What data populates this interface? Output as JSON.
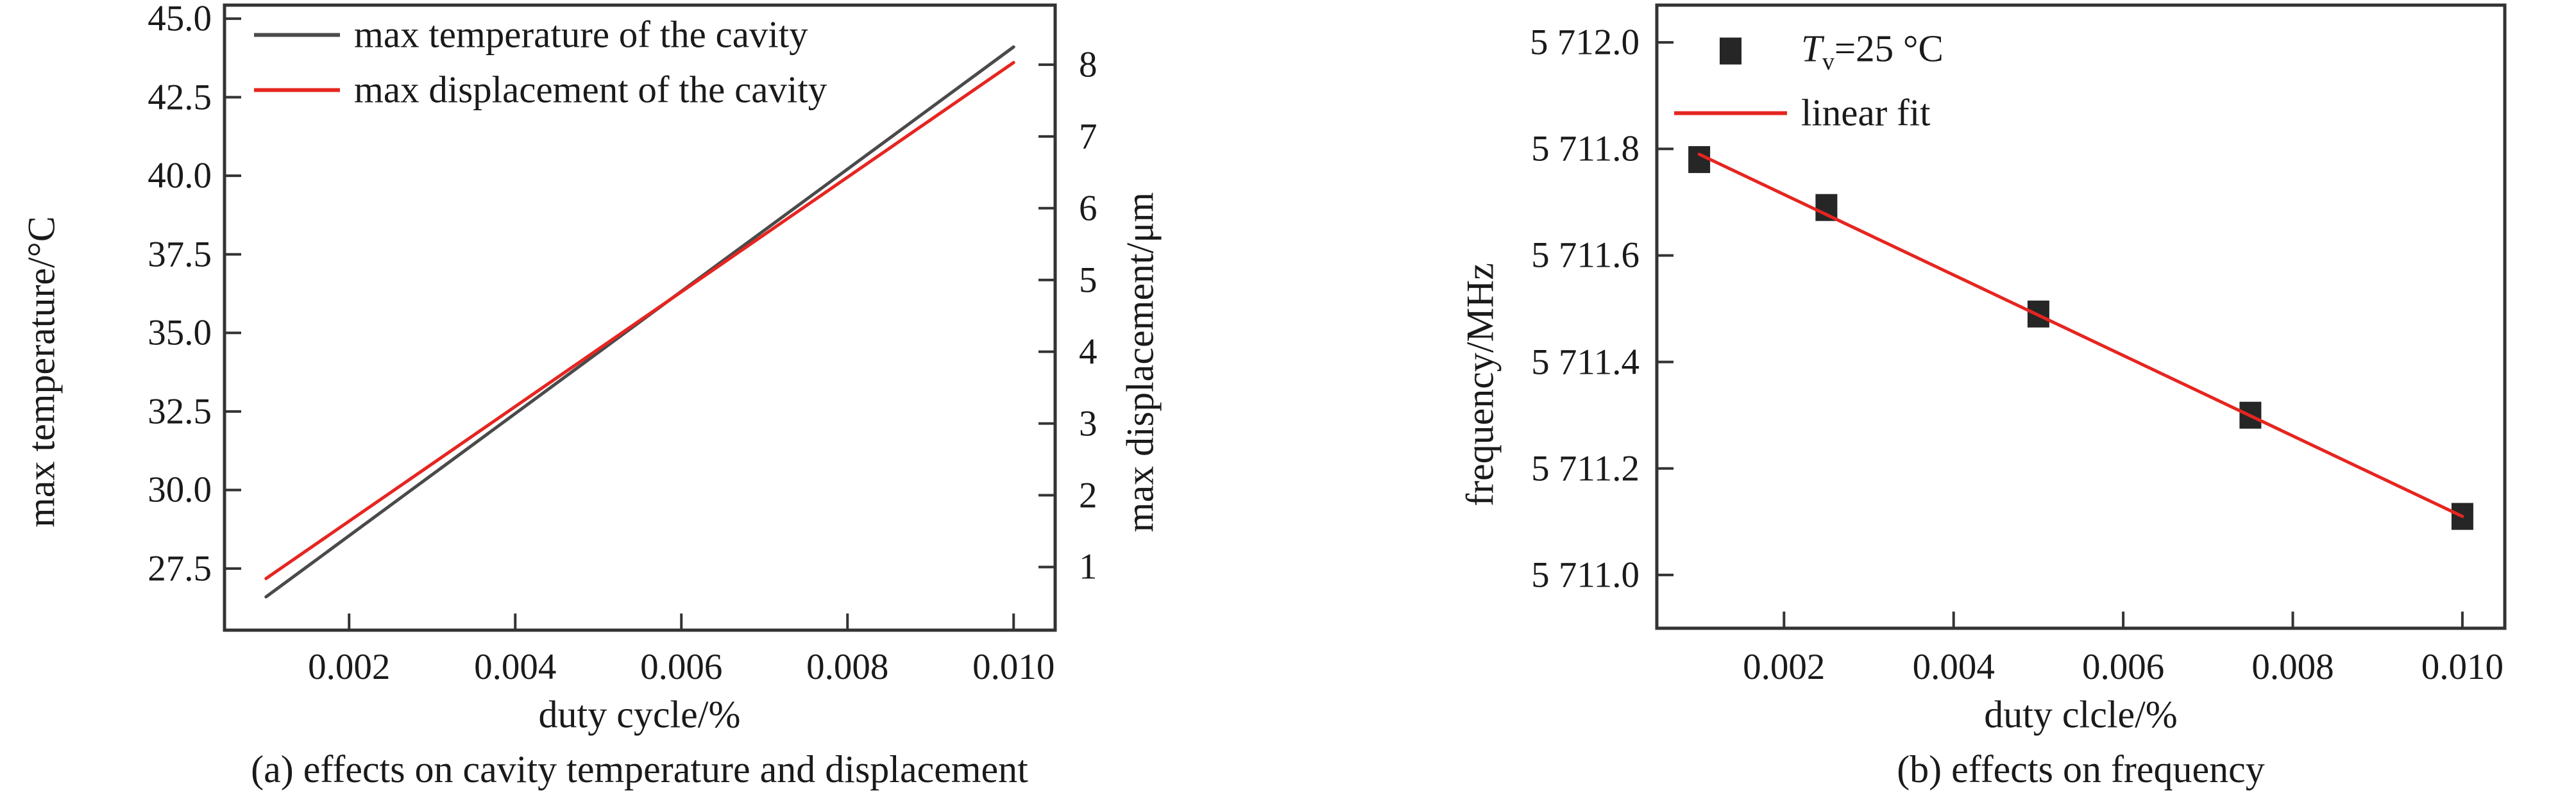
{
  "colors": {
    "red": "#e62520",
    "dark_line": "#4a4a4a",
    "marker": "#262626",
    "frame": "#333333",
    "text": "#1a1a1a",
    "background": "#ffffff"
  },
  "chart_data": [
    {
      "id": "cavity-temperature-displacement",
      "type": "line",
      "caption": "(a) effects on cavity temperature and displacement",
      "xlabel": "duty cycle/%",
      "ylabel_left": "max temperature/°C",
      "ylabel_right": "max displacement/μm",
      "xlim": [
        0.0005,
        0.0105
      ],
      "ylim_left": [
        25.54,
        45.43
      ],
      "ylim_right": [
        0.12,
        8.83
      ],
      "grid": false,
      "legend_position": "top-left-inside",
      "xticks": {
        "values": [
          0.002,
          0.004,
          0.006,
          0.008,
          0.01
        ],
        "labels": [
          "0.002",
          "0.004",
          "0.006",
          "0.008",
          "0.010"
        ]
      },
      "yticks_left": {
        "values": [
          27.5,
          30.0,
          32.5,
          35.0,
          37.5,
          40.0,
          42.5,
          45.0
        ],
        "labels": [
          "27.5",
          "30.0",
          "32.5",
          "35.0",
          "37.5",
          "40.0",
          "42.5",
          "45.0"
        ]
      },
      "yticks_right": {
        "values": [
          1,
          2,
          3,
          4,
          5,
          6,
          7,
          8
        ],
        "labels": [
          "1",
          "2",
          "3",
          "4",
          "5",
          "6",
          "7",
          "8"
        ]
      },
      "series": [
        {
          "name": "max temperature of the cavity",
          "kind": "line",
          "axis": "left",
          "color_key": "dark_line",
          "x": [
            0.001,
            0.01
          ],
          "y": [
            26.6,
            44.1
          ]
        },
        {
          "name": "max displacement of the cavity",
          "kind": "line",
          "axis": "right",
          "color_key": "red",
          "x": [
            0.001,
            0.01
          ],
          "y": [
            0.84,
            8.03
          ]
        }
      ],
      "legend": [
        {
          "swatch": "line",
          "color_key": "dark_line",
          "label": "max temperature of the cavity"
        },
        {
          "swatch": "line",
          "color_key": "red",
          "label": "max displacement of the cavity"
        }
      ]
    },
    {
      "id": "frequency",
      "type": "scatter-with-fit",
      "caption": "(b) effects on frequency",
      "xlabel": "duty clcle/%",
      "ylabel_left": "frequency/MHz",
      "xlim": [
        0.0005,
        0.0105
      ],
      "ylim_left": [
        5710.9,
        5712.07
      ],
      "grid": false,
      "legend_position": "top-left-inside",
      "xticks": {
        "values": [
          0.002,
          0.004,
          0.006,
          0.008,
          0.01
        ],
        "labels": [
          "0.002",
          "0.004",
          "0.006",
          "0.008",
          "0.010"
        ]
      },
      "yticks_left": {
        "values": [
          5711.0,
          5711.2,
          5711.4,
          5711.6,
          5711.8,
          5712.0
        ],
        "labels": [
          "5 711.0",
          "5 711.2",
          "5 711.4",
          "5 711.6",
          "5 711.8",
          "5 712.0"
        ]
      },
      "series": [
        {
          "name": "Tv=25 °C",
          "kind": "scatter",
          "axis": "left",
          "color_key": "marker",
          "x": [
            0.001,
            0.0025,
            0.005,
            0.0075,
            0.01
          ],
          "y": [
            5711.78,
            5711.69,
            5711.49,
            5711.3,
            5711.11
          ]
        },
        {
          "name": "linear fit",
          "kind": "line",
          "axis": "left",
          "color_key": "red",
          "x": [
            0.001,
            0.01
          ],
          "y": [
            5711.79,
            5711.11
          ]
        }
      ],
      "legend": [
        {
          "swatch": "square",
          "color_key": "marker",
          "label_parts": {
            "pre_italic": "T",
            "sub": "v",
            "rest": "=25 °C"
          }
        },
        {
          "swatch": "line",
          "color_key": "red",
          "label": "linear fit"
        }
      ]
    }
  ]
}
